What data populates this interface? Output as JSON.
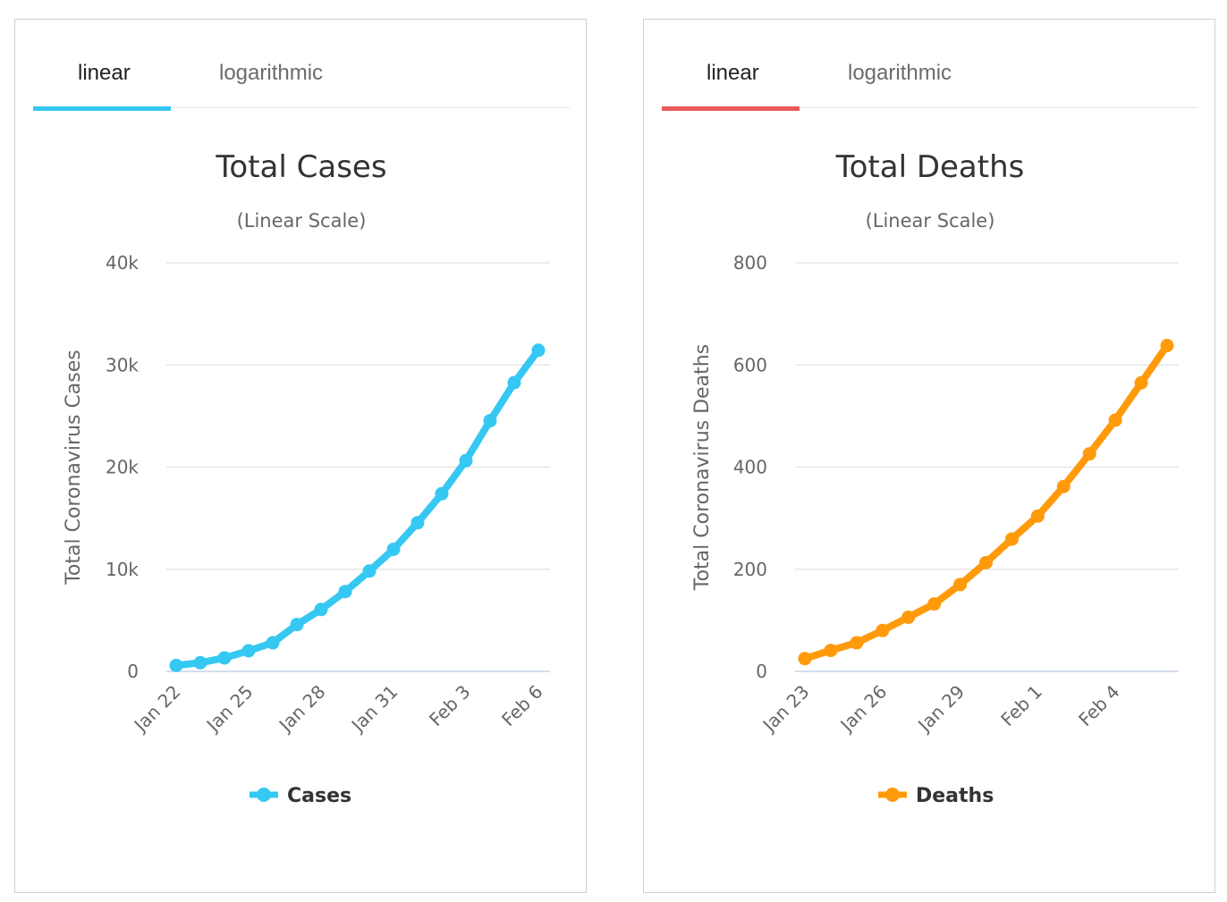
{
  "panels": [
    {
      "tabs": {
        "linear": "linear",
        "logarithmic": "logarithmic"
      },
      "accent": "#e8585c"
    }
  ],
  "cases_panel": {
    "tabs": {
      "linear": "linear",
      "logarithmic": "logarithmic"
    },
    "tab_accent": "#35c8f2"
  },
  "deaths_panel": {
    "tabs": {
      "linear": "linear",
      "logarithmic": "logarithmic"
    },
    "tab_accent": "#e8585c"
  },
  "chart_data": [
    {
      "type": "line",
      "title": "Total Cases",
      "subtitle": "(Linear Scale)",
      "ylabel": "Total Coronavirus Cases",
      "xlabel": "",
      "ylim": [
        0,
        40000
      ],
      "ytick_labels": [
        "0",
        "10k",
        "20k",
        "30k",
        "40k"
      ],
      "yticks": [
        0,
        10000,
        20000,
        30000,
        40000
      ],
      "x": [
        "Jan 22",
        "Jan 23",
        "Jan 24",
        "Jan 25",
        "Jan 26",
        "Jan 27",
        "Jan 28",
        "Jan 29",
        "Jan 30",
        "Jan 31",
        "Feb 1",
        "Feb 2",
        "Feb 3",
        "Feb 4",
        "Feb 5",
        "Feb 6"
      ],
      "xtick_labels": [
        "Jan 22",
        "Jan 25",
        "Jan 28",
        "Jan 31",
        "Feb 3",
        "Feb 6"
      ],
      "series": [
        {
          "name": "Cases",
          "color": "#35c8f2",
          "values": [
            580,
            845,
            1317,
            2015,
            2800,
            4581,
            6058,
            7813,
            9823,
            11950,
            14553,
            17391,
            20630,
            24545,
            28266,
            31439
          ]
        }
      ],
      "grid": true,
      "legend": "bottom-center"
    },
    {
      "type": "line",
      "title": "Total Deaths",
      "subtitle": "(Linear Scale)",
      "ylabel": "Total Coronavirus Deaths",
      "xlabel": "",
      "ylim": [
        0,
        800
      ],
      "ytick_labels": [
        "0",
        "200",
        "400",
        "600",
        "800"
      ],
      "yticks": [
        0,
        200,
        400,
        600,
        800
      ],
      "x": [
        "Jan 23",
        "Jan 24",
        "Jan 25",
        "Jan 26",
        "Jan 27",
        "Jan 28",
        "Jan 29",
        "Jan 30",
        "Jan 31",
        "Feb 1",
        "Feb 2",
        "Feb 3",
        "Feb 4",
        "Feb 5",
        "Feb 6"
      ],
      "xtick_labels": [
        "Jan 23",
        "Jan 26",
        "Jan 29",
        "Feb 1",
        "Feb 4"
      ],
      "series": [
        {
          "name": "Deaths",
          "color": "#ff9a0a",
          "values": [
            25,
            41,
            56,
            80,
            106,
            132,
            170,
            213,
            259,
            304,
            362,
            426,
            492,
            565,
            638
          ]
        }
      ],
      "grid": true,
      "legend": "bottom-center"
    }
  ]
}
